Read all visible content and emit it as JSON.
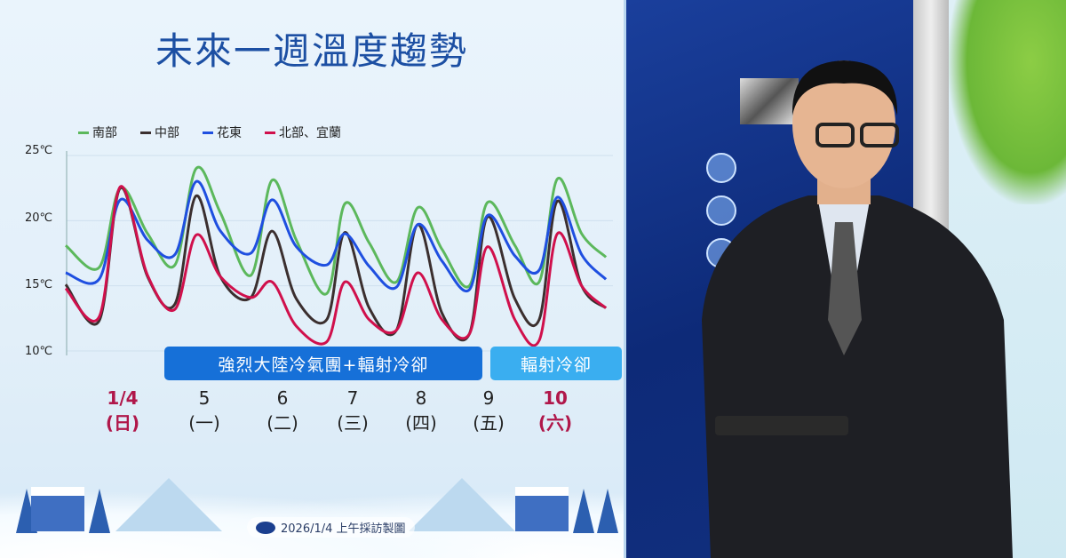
{
  "title": "未來一週溫度趨勢",
  "credit": "2026/1/4 上午採訪製圖",
  "banners": [
    {
      "label": "強烈大陸冷氣團+輻射冷卻",
      "color": "#1670d8"
    },
    {
      "label": "輻射冷卻",
      "color": "#3aaef0"
    }
  ],
  "days": [
    {
      "date": "1/4",
      "weekday": "(日)",
      "highlight": true
    },
    {
      "date": "5",
      "weekday": "(一)",
      "highlight": false
    },
    {
      "date": "6",
      "weekday": "(二)",
      "highlight": false
    },
    {
      "date": "7",
      "weekday": "(三)",
      "highlight": false
    },
    {
      "date": "8",
      "weekday": "(四)",
      "highlight": false
    },
    {
      "date": "9",
      "weekday": "(五)",
      "highlight": false
    },
    {
      "date": "10",
      "weekday": "(六)",
      "highlight": true
    }
  ],
  "chart_data": {
    "type": "line",
    "title": "未來一週溫度趨勢",
    "ylim": [
      10,
      25
    ],
    "yticks": [
      "25℃",
      "20℃",
      "15℃",
      "10℃"
    ],
    "ytick_values": [
      25,
      20,
      15,
      10
    ],
    "grid": true,
    "legend_position": "top-left",
    "x": [
      "01-03 19:00",
      "01-04 06:00",
      "01-04 13:00",
      "01-04 22:00",
      "01-05 07:00",
      "01-05 14:00",
      "01-05 22:00",
      "01-06 08:00",
      "01-06 15:00",
      "01-06 23:00",
      "01-07 09:00",
      "01-07 15:00",
      "01-07 23:00",
      "01-08 08:00",
      "01-08 15:00",
      "01-08 23:00",
      "01-09 08:00",
      "01-09 14:00",
      "01-09 23:00",
      "01-10 07:00",
      "01-10 13:00",
      "01-10 21:00",
      "01-11 05:00"
    ],
    "series": [
      {
        "name": "南部",
        "color": "#5cb85c",
        "values": [
          18.1,
          16.4,
          22.5,
          19.0,
          16.6,
          24.0,
          20.6,
          15.8,
          23.1,
          18.5,
          14.4,
          21.3,
          18.3,
          15.3,
          21.0,
          17.8,
          15.0,
          21.4,
          18.1,
          15.3,
          23.2,
          19.0,
          17.2
        ]
      },
      {
        "name": "中部",
        "color": "#3b2f2f",
        "values": [
          15.1,
          12.3,
          22.5,
          15.7,
          13.6,
          21.9,
          15.7,
          14.1,
          19.2,
          14.0,
          12.4,
          19.1,
          13.3,
          11.6,
          19.7,
          12.9,
          11.3,
          20.3,
          14.0,
          12.4,
          21.5,
          15.0,
          13.3
        ]
      },
      {
        "name": "花東",
        "color": "#1f4fe0",
        "values": [
          16.0,
          15.5,
          21.6,
          18.5,
          17.4,
          23.0,
          19.2,
          17.5,
          21.6,
          18.0,
          16.6,
          19.0,
          16.5,
          14.9,
          19.7,
          16.9,
          14.7,
          20.4,
          17.3,
          16.2,
          21.8,
          17.4,
          15.5
        ]
      },
      {
        "name": "北部、宜蘭",
        "color": "#d0104c",
        "values": [
          14.8,
          12.6,
          22.6,
          15.8,
          13.2,
          18.9,
          15.7,
          14.1,
          15.3,
          11.9,
          10.7,
          15.3,
          12.4,
          11.6,
          16.0,
          12.4,
          11.3,
          18.0,
          12.4,
          10.8,
          19.0,
          15.0,
          13.3
        ]
      }
    ]
  }
}
